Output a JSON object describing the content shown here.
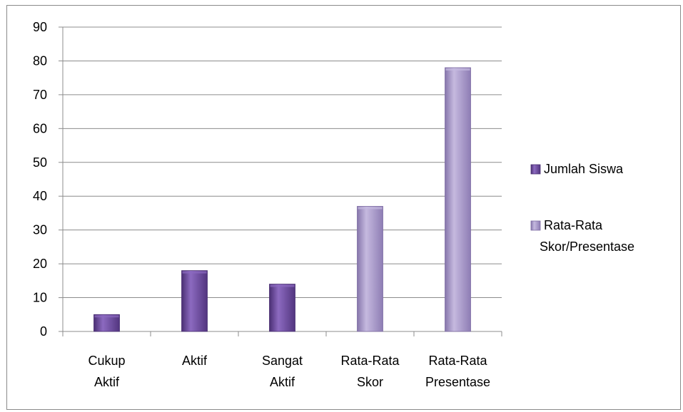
{
  "chart_data": {
    "type": "bar",
    "categories": [
      [
        "Cukup",
        "Aktif"
      ],
      [
        "Aktif"
      ],
      [
        "Sangat",
        "Aktif"
      ],
      [
        "Rata-Rata",
        "Skor"
      ],
      [
        "Rata-Rata",
        "Presentase"
      ]
    ],
    "series": [
      {
        "name": "Jumlah Siswa",
        "values": [
          5,
          18,
          14,
          null,
          null
        ],
        "color": "#6b4a9c",
        "color_light": "#8c6ac0",
        "color_dark": "#4a2f73"
      },
      {
        "name": "Rata-Rata Skor/Presentase",
        "legend_lines": [
          "Rata-Rata",
          "Skor/Presentase"
        ],
        "values": [
          null,
          null,
          null,
          37,
          78
        ],
        "color": "#a797c8",
        "color_light": "#c5b9df",
        "color_dark": "#7d6ca3"
      }
    ],
    "y_ticks": [
      0,
      10,
      20,
      30,
      40,
      50,
      60,
      70,
      80,
      90
    ],
    "ylim": [
      0,
      90
    ],
    "grid": true,
    "legend_position": "right",
    "title": "",
    "xlabel": "",
    "ylabel": ""
  }
}
